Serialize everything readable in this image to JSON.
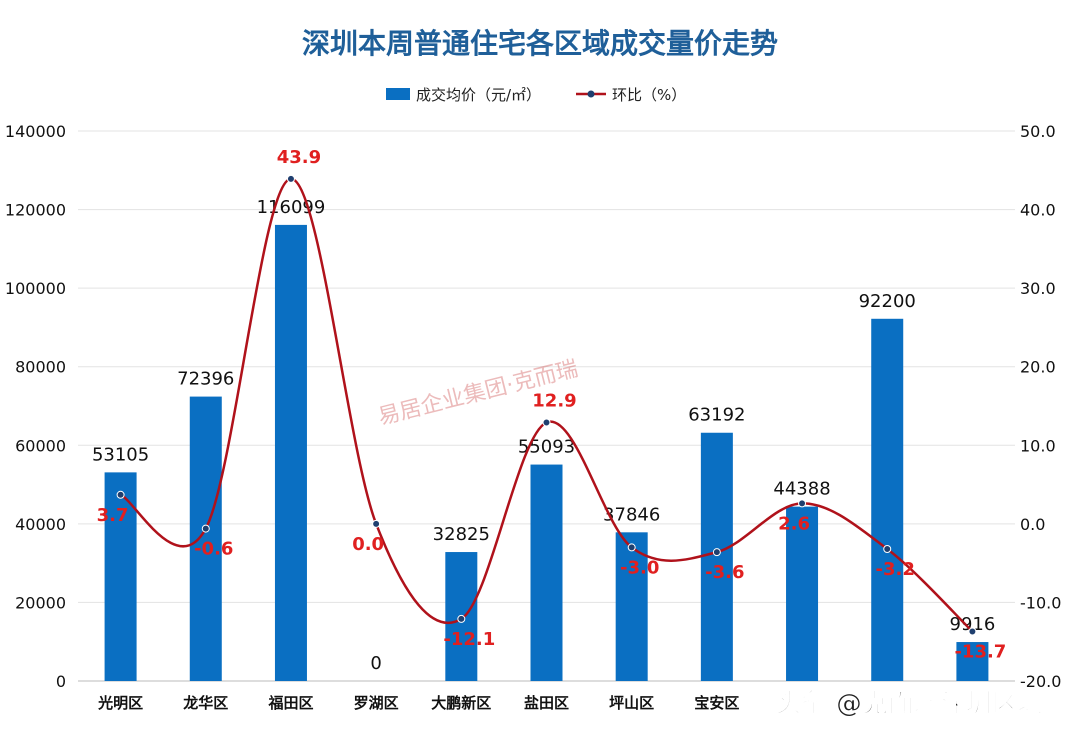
{
  "chart_data": {
    "type": "bar+line",
    "title": "深圳本周普通住宅各区域成交量价走势",
    "categories": [
      "光明区",
      "龙华区",
      "福田区",
      "罗湖区",
      "大鹏新区",
      "盐田区",
      "坪山区",
      "宝安区",
      "",
      "",
      ""
    ],
    "series": [
      {
        "name": "成交均价（元/㎡）",
        "type": "bar",
        "axis": "left",
        "color": "#0a6fc2",
        "values": [
          53105,
          72396,
          116099,
          0,
          32825,
          55093,
          37846,
          63192,
          44388,
          92200,
          9916
        ]
      },
      {
        "name": "环比（%）",
        "type": "line",
        "axis": "right",
        "color": "#b0121b",
        "values": [
          3.7,
          -0.6,
          43.9,
          0.0,
          -12.1,
          12.9,
          -3.0,
          -3.6,
          2.6,
          -3.2,
          -13.7
        ]
      }
    ],
    "y_left": {
      "range": [
        0,
        140000
      ],
      "ticks": [
        "0",
        "20000",
        "40000",
        "60000",
        "80000",
        "100000",
        "120000",
        "140000"
      ]
    },
    "y_right": {
      "range": [
        -20,
        50
      ],
      "ticks": [
        "-20.0",
        "-10.0",
        "0.0",
        "10.0",
        "20.0",
        "30.0",
        "40.0",
        "50.0"
      ]
    },
    "grid": true,
    "legend_placement": "top"
  },
  "watermarks": {
    "bottom": "头条 @克而瑞深圳区域",
    "center": "易居企业集团·克而瑞"
  }
}
